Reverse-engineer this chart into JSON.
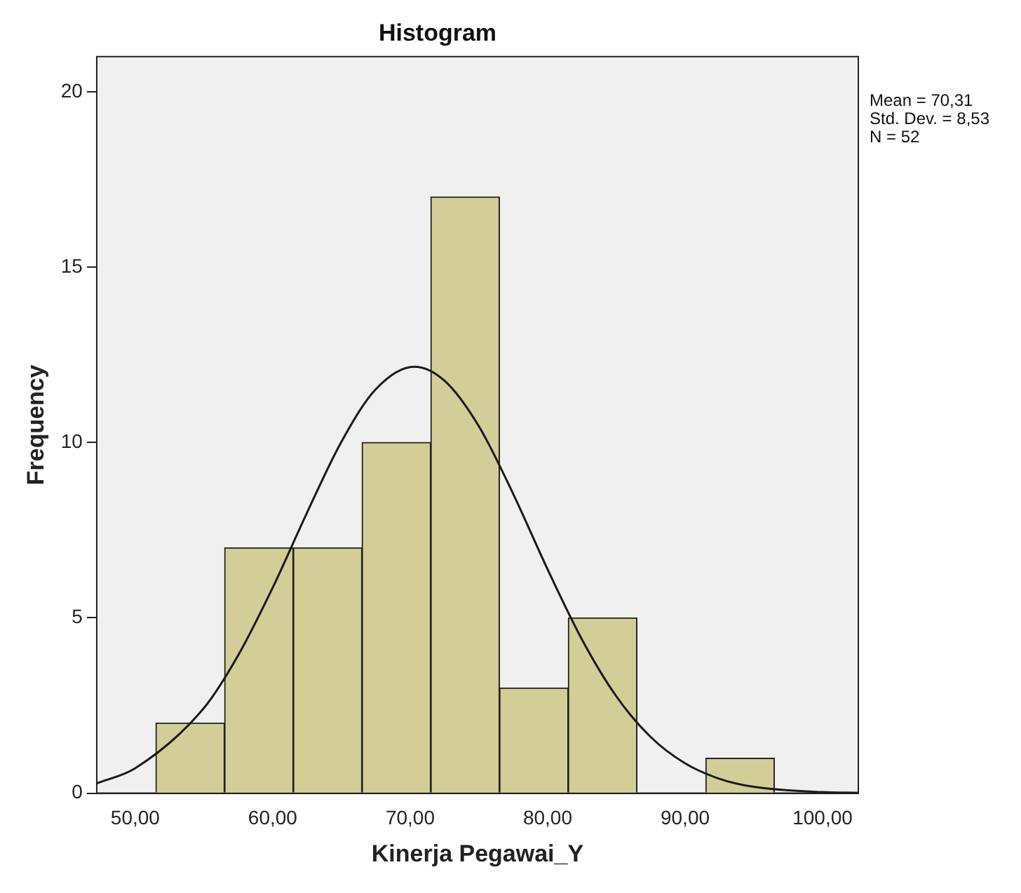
{
  "chart_data": {
    "type": "histogram",
    "title": "Histogram",
    "xlabel": "Kinerja Pegawai_Y",
    "ylabel": "Frequency",
    "bins": [
      51.5,
      56.5,
      61.5,
      66.5,
      71.5,
      76.5,
      81.5,
      86.5,
      91.5,
      96.5
    ],
    "values": [
      2,
      7,
      7,
      10,
      17,
      3,
      5,
      0,
      1
    ],
    "color": "#d3ce98",
    "series": [
      {
        "type": "line",
        "color": "#1a1a1a",
        "x": [
          47.2,
          50,
          55,
          57.5,
          60,
          62.5,
          65,
          67.5,
          70.3,
          72.5,
          75,
          77.5,
          80,
          82.5,
          85,
          87.5,
          90,
          92.5,
          95,
          100,
          102.6
        ],
        "values": [
          0.28,
          0.71,
          2.43,
          3.94,
          5.86,
          8.0,
          10.02,
          11.52,
          12.16,
          11.76,
          10.46,
          8.53,
          6.38,
          4.38,
          2.76,
          1.6,
          0.85,
          0.41,
          0.18,
          0.03,
          0.01
        ]
      }
    ],
    "xlim": [
      47.2,
      102.6
    ],
    "xticks": [
      {
        "value": 50,
        "label": "50,00"
      },
      {
        "value": 60,
        "label": "60,00"
      },
      {
        "value": 70,
        "label": "70,00"
      },
      {
        "value": 80,
        "label": "80,00"
      },
      {
        "value": 90,
        "label": "90,00"
      },
      {
        "value": 100,
        "label": "100,00"
      }
    ],
    "ylim": [
      0,
      21
    ],
    "yticks": [
      0,
      5,
      10,
      15,
      20
    ],
    "grid": false,
    "legend": false,
    "annotations": [
      "Mean = 70,31",
      "Std. Dev. = 8,53",
      "N = 52"
    ]
  }
}
